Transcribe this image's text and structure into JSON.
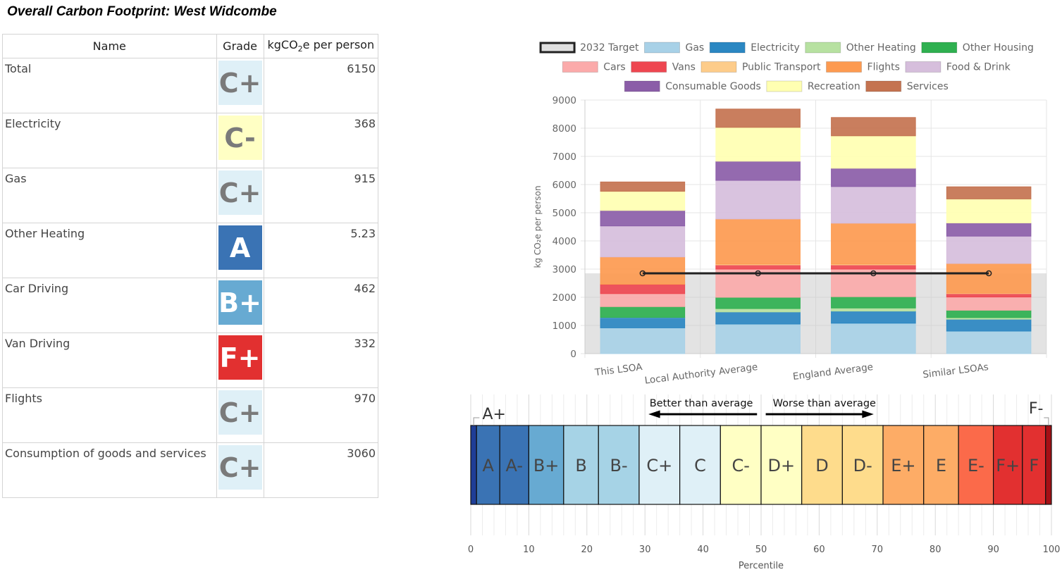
{
  "title": "Overall Carbon Footprint: West Widcombe",
  "table": {
    "headers": [
      "Name",
      "Grade",
      "kgCO",
      "2",
      "e per person"
    ],
    "rows": [
      {
        "name": "Total",
        "grade": "C+",
        "value": "6150",
        "bg": "#dff0f7",
        "fg": "#7a7a7a"
      },
      {
        "name": "Electricity",
        "grade": "C-",
        "value": "368",
        "bg": "#ffffc4",
        "fg": "#7a7a7a"
      },
      {
        "name": "Gas",
        "grade": "C+",
        "value": "915",
        "bg": "#dff0f7",
        "fg": "#7a7a7a"
      },
      {
        "name": "Other Heating",
        "grade": "A",
        "value": "5.23",
        "bg": "#3a73b4",
        "fg": "#ffffff"
      },
      {
        "name": "Car Driving",
        "grade": "B+",
        "value": "462",
        "bg": "#67aad2",
        "fg": "#ffffff"
      },
      {
        "name": "Van Driving",
        "grade": "F+",
        "value": "332",
        "bg": "#e23030",
        "fg": "#ffffff"
      },
      {
        "name": "Flights",
        "grade": "C+",
        "value": "970",
        "bg": "#dff0f7",
        "fg": "#7a7a7a"
      },
      {
        "name": "Consumption of goods and services",
        "grade": "C+",
        "value": "3060",
        "bg": "#dff0f7",
        "fg": "#7a7a7a"
      }
    ]
  },
  "chart_data": [
    {
      "type": "bar",
      "stacked": true,
      "categories": [
        "This LSOA",
        "Local Authority Average",
        "England Average",
        "Similar LSOAs"
      ],
      "ylabel": "kg CO₂e per person",
      "ylim": [
        0,
        9000
      ],
      "yticks": [
        0,
        1000,
        2000,
        3000,
        4000,
        5000,
        6000,
        7000,
        8000,
        9000
      ],
      "grid": true,
      "legend_position": "top",
      "target": {
        "name": "2032 Target",
        "value": 2850
      },
      "series": [
        {
          "name": "Gas",
          "color": "#a8d1e7",
          "values": [
            915,
            1050,
            1080,
            800
          ]
        },
        {
          "name": "Electricity",
          "color": "#2b87c2",
          "values": [
            368,
            430,
            430,
            420
          ]
        },
        {
          "name": "Other Heating",
          "color": "#b7e1a1",
          "values": [
            5.23,
            120,
            110,
            60
          ]
        },
        {
          "name": "Other Housing",
          "color": "#2fb050",
          "values": [
            380,
            400,
            400,
            260
          ]
        },
        {
          "name": "Cars",
          "color": "#fbaaaa",
          "values": [
            462,
            1000,
            980,
            470
          ]
        },
        {
          "name": "Vans",
          "color": "#ee4650",
          "values": [
            332,
            150,
            150,
            120
          ]
        },
        {
          "name": "Public Transport",
          "color": "#fdcc8a",
          "values": [
            0,
            30,
            30,
            20
          ]
        },
        {
          "name": "Flights",
          "color": "#fd9a50",
          "values": [
            970,
            1600,
            1450,
            1050
          ]
        },
        {
          "name": "Food & Drink",
          "color": "#d6bedc",
          "values": [
            1100,
            1370,
            1300,
            970
          ]
        },
        {
          "name": "Consumable Goods",
          "color": "#8b5da8",
          "values": [
            550,
            680,
            650,
            470
          ]
        },
        {
          "name": "Recreation",
          "color": "#ffffb2",
          "values": [
            680,
            1200,
            1150,
            850
          ]
        },
        {
          "name": "Services",
          "color": "#c47350",
          "values": [
            330,
            650,
            650,
            430
          ]
        }
      ]
    },
    {
      "type": "bar",
      "subtype": "grade-scale",
      "xlabel": "Percentile",
      "xlim": [
        0,
        100
      ],
      "xticks": [
        0,
        10,
        20,
        30,
        40,
        50,
        60,
        70,
        80,
        90,
        100
      ],
      "annotations": [
        "Better than average",
        "Worse than average"
      ],
      "bands": [
        {
          "label": "A+",
          "from": 0,
          "to": 1,
          "color": "#1f3e97",
          "outside": true
        },
        {
          "label": "A",
          "from": 1,
          "to": 5,
          "color": "#3a73b4"
        },
        {
          "label": "A-",
          "from": 5,
          "to": 10,
          "color": "#3a73b4"
        },
        {
          "label": "B+",
          "from": 10,
          "to": 16,
          "color": "#67aad2"
        },
        {
          "label": "B",
          "from": 16,
          "to": 22,
          "color": "#a6d3e6"
        },
        {
          "label": "B-",
          "from": 22,
          "to": 29,
          "color": "#a6d3e6"
        },
        {
          "label": "C+",
          "from": 29,
          "to": 36,
          "color": "#dff0f7"
        },
        {
          "label": "C",
          "from": 36,
          "to": 43,
          "color": "#dff0f7"
        },
        {
          "label": "C-",
          "from": 43,
          "to": 50,
          "color": "#ffffc4"
        },
        {
          "label": "D+",
          "from": 50,
          "to": 57,
          "color": "#ffffc4"
        },
        {
          "label": "D",
          "from": 57,
          "to": 64,
          "color": "#fedc8c"
        },
        {
          "label": "D-",
          "from": 64,
          "to": 71,
          "color": "#fedc8c"
        },
        {
          "label": "E+",
          "from": 71,
          "to": 78,
          "color": "#fdac66"
        },
        {
          "label": "E",
          "from": 78,
          "to": 84,
          "color": "#fdac66"
        },
        {
          "label": "E-",
          "from": 84,
          "to": 90,
          "color": "#fb6a4a"
        },
        {
          "label": "F+",
          "from": 90,
          "to": 95,
          "color": "#e23030"
        },
        {
          "label": "F",
          "from": 95,
          "to": 99,
          "color": "#e23030"
        },
        {
          "label": "F-",
          "from": 99,
          "to": 100,
          "color": "#a50f15",
          "outside": true
        }
      ]
    }
  ]
}
